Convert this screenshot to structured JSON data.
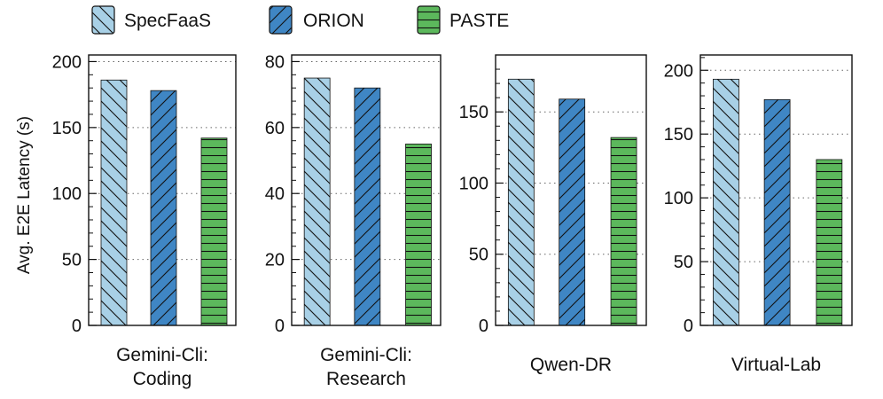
{
  "chart_data": {
    "type": "bar",
    "ylabel": "Avg. E2E Latency (s)",
    "series_names": [
      "SpecFaaS",
      "ORION",
      "PASTE"
    ],
    "colors": {
      "SpecFaaS": "#a8d0e6",
      "ORION": "#3f86c4",
      "PASTE": "#5cb85c"
    },
    "hatch": {
      "SpecFaaS": "backslash",
      "ORION": "slash",
      "PASTE": "horizontal"
    },
    "legend_position": "top",
    "grid": "horizontal-dotted",
    "panels": [
      {
        "xlabel_lines": [
          "Gemini-Cli:",
          "Coding"
        ],
        "ylim": [
          0,
          205
        ],
        "ticks": [
          0,
          50,
          100,
          150,
          200
        ],
        "values": [
          186,
          178,
          142
        ]
      },
      {
        "xlabel_lines": [
          "Gemini-Cli:",
          "Research"
        ],
        "ylim": [
          0,
          82
        ],
        "ticks": [
          0,
          20,
          40,
          60,
          80
        ],
        "values": [
          75,
          72,
          55
        ]
      },
      {
        "xlabel_lines": [
          "Qwen-DR"
        ],
        "ylim": [
          0,
          190
        ],
        "ticks": [
          0,
          50,
          100,
          150
        ],
        "values": [
          173,
          159,
          132
        ]
      },
      {
        "xlabel_lines": [
          "Virtual-Lab"
        ],
        "ylim": [
          0,
          212
        ],
        "ticks": [
          0,
          50,
          100,
          150,
          200
        ],
        "values": [
          193,
          177,
          130
        ]
      }
    ]
  }
}
